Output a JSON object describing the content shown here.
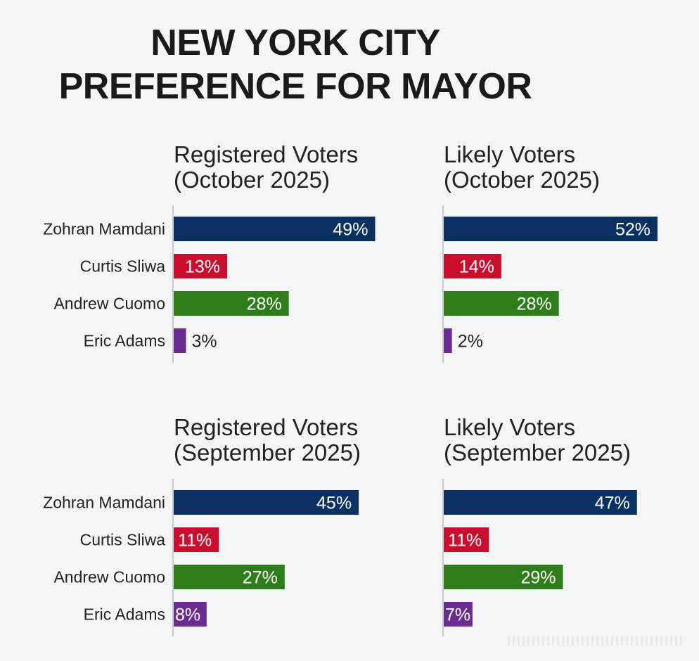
{
  "title_lines": [
    "NEW YORK CITY",
    "PREFERENCE FOR MAYOR"
  ],
  "colors": {
    "Zohran Mamdani": "#0b3163",
    "Curtis Sliwa": "#c8102e",
    "Andrew Cuomo": "#2e7d1a",
    "Eric Adams": "#6a2c91"
  },
  "chart_data": [
    {
      "type": "bar",
      "orientation": "horizontal",
      "title": [
        "Registered Voters",
        "(October 2025)"
      ],
      "categories": [
        "Zohran Mamdani",
        "Curtis Sliwa",
        "Andrew Cuomo",
        "Eric Adams"
      ],
      "values": [
        49,
        13,
        28,
        3
      ],
      "labels": [
        "49%",
        "13%",
        "28%",
        "3%"
      ],
      "xlim": [
        0,
        52
      ]
    },
    {
      "type": "bar",
      "orientation": "horizontal",
      "title": [
        "Likely Voters",
        "(October 2025)"
      ],
      "categories": [
        "Zohran Mamdani",
        "Curtis Sliwa",
        "Andrew Cuomo",
        "Eric Adams"
      ],
      "values": [
        52,
        14,
        28,
        2
      ],
      "labels": [
        "52%",
        "14%",
        "28%",
        "2%"
      ],
      "xlim": [
        0,
        52
      ]
    },
    {
      "type": "bar",
      "orientation": "horizontal",
      "title": [
        "Registered Voters",
        "(September 2025)"
      ],
      "categories": [
        "Zohran Mamdani",
        "Curtis Sliwa",
        "Andrew Cuomo",
        "Eric Adams"
      ],
      "values": [
        45,
        11,
        27,
        8
      ],
      "labels": [
        "45%",
        "11%",
        "27%",
        "8%"
      ],
      "xlim": [
        0,
        52
      ]
    },
    {
      "type": "bar",
      "orientation": "horizontal",
      "title": [
        "Likely Voters",
        "(September 2025)"
      ],
      "categories": [
        "Zohran Mamdani",
        "Curtis Sliwa",
        "Andrew Cuomo",
        "Eric Adams"
      ],
      "values": [
        47,
        11,
        29,
        7
      ],
      "labels": [
        "47%",
        "11%",
        "29%",
        "7%"
      ],
      "xlim": [
        0,
        52
      ]
    }
  ]
}
